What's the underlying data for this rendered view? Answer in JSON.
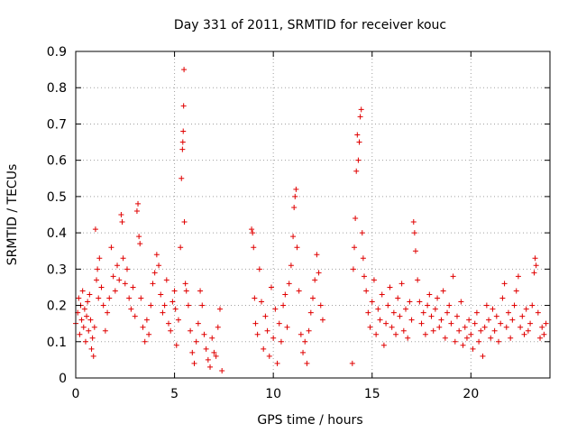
{
  "chart_data": {
    "type": "scatter",
    "title": "Day 331 of 2011, SRMTID for receiver kouc",
    "xlabel": "GPS time / hours",
    "ylabel": "SRMTID / TECUs",
    "xlim": [
      0,
      24
    ],
    "ylim": [
      0,
      0.9
    ],
    "x_ticks": [
      0,
      5,
      10,
      15,
      20
    ],
    "x_tick_labels": [
      "0",
      "5",
      "10",
      "15",
      "20"
    ],
    "y_ticks": [
      0,
      0.1,
      0.2,
      0.3,
      0.4,
      0.5,
      0.6,
      0.7,
      0.8,
      0.9
    ],
    "y_tick_labels": [
      "0",
      "0.1",
      "0.2",
      "0.3",
      "0.4",
      "0.5",
      "0.6",
      "0.7",
      "0.8",
      "0.9"
    ],
    "grid": true,
    "marker": "plus",
    "marker_color": "#e00000",
    "series": [
      {
        "name": "SRMTID",
        "points": [
          [
            0.0,
            0.15
          ],
          [
            0.1,
            0.18
          ],
          [
            0.15,
            0.22
          ],
          [
            0.2,
            0.12
          ],
          [
            0.25,
            0.2
          ],
          [
            0.3,
            0.16
          ],
          [
            0.35,
            0.24
          ],
          [
            0.4,
            0.14
          ],
          [
            0.45,
            0.19
          ],
          [
            0.5,
            0.1
          ],
          [
            0.55,
            0.17
          ],
          [
            0.6,
            0.21
          ],
          [
            0.65,
            0.13
          ],
          [
            0.7,
            0.23
          ],
          [
            0.75,
            0.16
          ],
          [
            0.8,
            0.08
          ],
          [
            0.85,
            0.11
          ],
          [
            0.9,
            0.06
          ],
          [
            0.95,
            0.14
          ],
          [
            1.0,
            0.41
          ],
          [
            1.05,
            0.27
          ],
          [
            1.1,
            0.3
          ],
          [
            1.15,
            0.22
          ],
          [
            1.2,
            0.33
          ],
          [
            1.3,
            0.25
          ],
          [
            1.4,
            0.2
          ],
          [
            1.5,
            0.13
          ],
          [
            1.6,
            0.18
          ],
          [
            1.7,
            0.22
          ],
          [
            1.8,
            0.36
          ],
          [
            1.9,
            0.28
          ],
          [
            2.0,
            0.24
          ],
          [
            2.1,
            0.31
          ],
          [
            2.2,
            0.27
          ],
          [
            2.3,
            0.45
          ],
          [
            2.35,
            0.43
          ],
          [
            2.4,
            0.33
          ],
          [
            2.5,
            0.26
          ],
          [
            2.6,
            0.3
          ],
          [
            2.7,
            0.22
          ],
          [
            2.8,
            0.19
          ],
          [
            2.9,
            0.25
          ],
          [
            3.0,
            0.17
          ],
          [
            3.1,
            0.46
          ],
          [
            3.15,
            0.48
          ],
          [
            3.2,
            0.39
          ],
          [
            3.25,
            0.37
          ],
          [
            3.3,
            0.22
          ],
          [
            3.4,
            0.14
          ],
          [
            3.5,
            0.1
          ],
          [
            3.6,
            0.16
          ],
          [
            3.7,
            0.12
          ],
          [
            3.8,
            0.2
          ],
          [
            3.9,
            0.26
          ],
          [
            4.0,
            0.29
          ],
          [
            4.1,
            0.34
          ],
          [
            4.2,
            0.31
          ],
          [
            4.3,
            0.23
          ],
          [
            4.4,
            0.18
          ],
          [
            4.5,
            0.2
          ],
          [
            4.6,
            0.27
          ],
          [
            4.7,
            0.15
          ],
          [
            4.8,
            0.13
          ],
          [
            4.9,
            0.21
          ],
          [
            5.0,
            0.24
          ],
          [
            5.05,
            0.19
          ],
          [
            5.1,
            0.09
          ],
          [
            5.2,
            0.16
          ],
          [
            5.3,
            0.36
          ],
          [
            5.35,
            0.55
          ],
          [
            5.4,
            0.63
          ],
          [
            5.42,
            0.65
          ],
          [
            5.44,
            0.68
          ],
          [
            5.46,
            0.75
          ],
          [
            5.48,
            0.85
          ],
          [
            5.5,
            0.43
          ],
          [
            5.55,
            0.26
          ],
          [
            5.6,
            0.24
          ],
          [
            5.7,
            0.2
          ],
          [
            5.8,
            0.13
          ],
          [
            5.9,
            0.07
          ],
          [
            6.0,
            0.04
          ],
          [
            6.1,
            0.1
          ],
          [
            6.2,
            0.15
          ],
          [
            6.3,
            0.24
          ],
          [
            6.4,
            0.2
          ],
          [
            6.5,
            0.12
          ],
          [
            6.6,
            0.08
          ],
          [
            6.7,
            0.05
          ],
          [
            6.8,
            0.03
          ],
          [
            6.9,
            0.11
          ],
          [
            7.0,
            0.07
          ],
          [
            7.1,
            0.06
          ],
          [
            7.2,
            0.14
          ],
          [
            7.3,
            0.19
          ],
          [
            7.4,
            0.02
          ],
          [
            8.9,
            0.41
          ],
          [
            8.95,
            0.4
          ],
          [
            9.0,
            0.36
          ],
          [
            9.05,
            0.22
          ],
          [
            9.1,
            0.15
          ],
          [
            9.2,
            0.12
          ],
          [
            9.3,
            0.3
          ],
          [
            9.4,
            0.21
          ],
          [
            9.5,
            0.08
          ],
          [
            9.6,
            0.17
          ],
          [
            9.7,
            0.13
          ],
          [
            9.8,
            0.06
          ],
          [
            9.9,
            0.25
          ],
          [
            10.0,
            0.11
          ],
          [
            10.1,
            0.19
          ],
          [
            10.2,
            0.04
          ],
          [
            10.3,
            0.15
          ],
          [
            10.4,
            0.1
          ],
          [
            10.5,
            0.2
          ],
          [
            10.6,
            0.23
          ],
          [
            10.7,
            0.14
          ],
          [
            10.8,
            0.26
          ],
          [
            10.9,
            0.31
          ],
          [
            11.0,
            0.39
          ],
          [
            11.05,
            0.47
          ],
          [
            11.1,
            0.5
          ],
          [
            11.15,
            0.52
          ],
          [
            11.2,
            0.36
          ],
          [
            11.3,
            0.24
          ],
          [
            11.4,
            0.12
          ],
          [
            11.5,
            0.07
          ],
          [
            11.6,
            0.1
          ],
          [
            11.7,
            0.04
          ],
          [
            11.8,
            0.13
          ],
          [
            11.9,
            0.18
          ],
          [
            12.0,
            0.22
          ],
          [
            12.1,
            0.27
          ],
          [
            12.2,
            0.34
          ],
          [
            12.3,
            0.29
          ],
          [
            12.4,
            0.2
          ],
          [
            12.5,
            0.16
          ],
          [
            14.0,
            0.04
          ],
          [
            14.05,
            0.3
          ],
          [
            14.1,
            0.36
          ],
          [
            14.15,
            0.44
          ],
          [
            14.2,
            0.57
          ],
          [
            14.25,
            0.67
          ],
          [
            14.3,
            0.6
          ],
          [
            14.35,
            0.65
          ],
          [
            14.4,
            0.72
          ],
          [
            14.45,
            0.74
          ],
          [
            14.5,
            0.4
          ],
          [
            14.55,
            0.33
          ],
          [
            14.6,
            0.28
          ],
          [
            14.7,
            0.24
          ],
          [
            14.8,
            0.18
          ],
          [
            14.9,
            0.14
          ],
          [
            15.0,
            0.21
          ],
          [
            15.1,
            0.27
          ],
          [
            15.2,
            0.12
          ],
          [
            15.3,
            0.19
          ],
          [
            15.4,
            0.16
          ],
          [
            15.5,
            0.23
          ],
          [
            15.6,
            0.09
          ],
          [
            15.7,
            0.15
          ],
          [
            15.8,
            0.2
          ],
          [
            15.9,
            0.25
          ],
          [
            16.0,
            0.14
          ],
          [
            16.1,
            0.18
          ],
          [
            16.2,
            0.12
          ],
          [
            16.3,
            0.22
          ],
          [
            16.4,
            0.17
          ],
          [
            16.5,
            0.26
          ],
          [
            16.6,
            0.13
          ],
          [
            16.7,
            0.19
          ],
          [
            16.8,
            0.11
          ],
          [
            16.9,
            0.21
          ],
          [
            17.0,
            0.16
          ],
          [
            17.1,
            0.43
          ],
          [
            17.15,
            0.4
          ],
          [
            17.2,
            0.35
          ],
          [
            17.3,
            0.27
          ],
          [
            17.4,
            0.21
          ],
          [
            17.5,
            0.15
          ],
          [
            17.6,
            0.18
          ],
          [
            17.7,
            0.12
          ],
          [
            17.8,
            0.2
          ],
          [
            17.9,
            0.23
          ],
          [
            18.0,
            0.17
          ],
          [
            18.1,
            0.13
          ],
          [
            18.2,
            0.19
          ],
          [
            18.3,
            0.22
          ],
          [
            18.4,
            0.14
          ],
          [
            18.5,
            0.16
          ],
          [
            18.6,
            0.24
          ],
          [
            18.7,
            0.11
          ],
          [
            18.8,
            0.18
          ],
          [
            18.9,
            0.2
          ],
          [
            19.0,
            0.15
          ],
          [
            19.1,
            0.28
          ],
          [
            19.2,
            0.1
          ],
          [
            19.3,
            0.17
          ],
          [
            19.4,
            0.13
          ],
          [
            19.5,
            0.21
          ],
          [
            19.6,
            0.09
          ],
          [
            19.7,
            0.14
          ],
          [
            19.8,
            0.11
          ],
          [
            19.9,
            0.16
          ],
          [
            20.0,
            0.12
          ],
          [
            20.1,
            0.08
          ],
          [
            20.2,
            0.15
          ],
          [
            20.3,
            0.18
          ],
          [
            20.4,
            0.1
          ],
          [
            20.5,
            0.13
          ],
          [
            20.6,
            0.06
          ],
          [
            20.7,
            0.14
          ],
          [
            20.8,
            0.2
          ],
          [
            20.9,
            0.16
          ],
          [
            21.0,
            0.11
          ],
          [
            21.1,
            0.19
          ],
          [
            21.2,
            0.13
          ],
          [
            21.3,
            0.17
          ],
          [
            21.4,
            0.1
          ],
          [
            21.5,
            0.15
          ],
          [
            21.6,
            0.22
          ],
          [
            21.7,
            0.26
          ],
          [
            21.8,
            0.14
          ],
          [
            21.9,
            0.18
          ],
          [
            22.0,
            0.11
          ],
          [
            22.1,
            0.16
          ],
          [
            22.2,
            0.2
          ],
          [
            22.3,
            0.24
          ],
          [
            22.4,
            0.28
          ],
          [
            22.5,
            0.14
          ],
          [
            22.6,
            0.17
          ],
          [
            22.7,
            0.12
          ],
          [
            22.8,
            0.19
          ],
          [
            22.9,
            0.13
          ],
          [
            23.0,
            0.15
          ],
          [
            23.1,
            0.2
          ],
          [
            23.2,
            0.29
          ],
          [
            23.25,
            0.33
          ],
          [
            23.3,
            0.31
          ],
          [
            23.4,
            0.18
          ],
          [
            23.5,
            0.11
          ],
          [
            23.6,
            0.14
          ],
          [
            23.7,
            0.12
          ],
          [
            23.8,
            0.15
          ]
        ]
      }
    ]
  }
}
